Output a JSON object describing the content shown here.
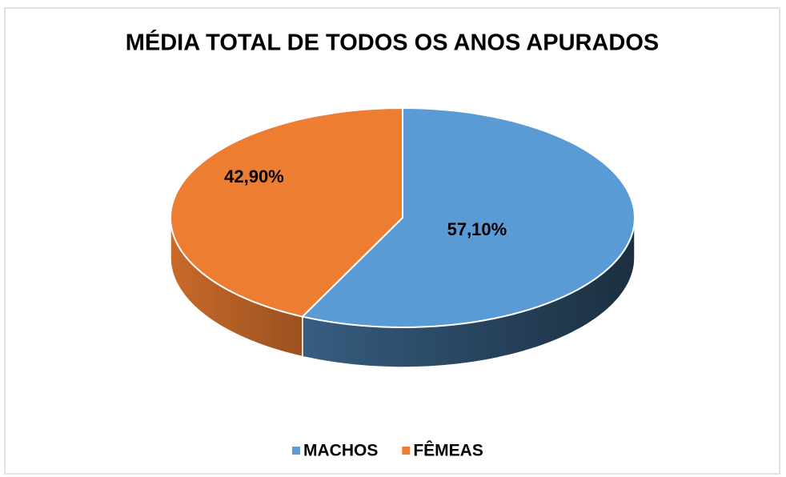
{
  "chart_data": {
    "type": "pie",
    "title": "MÉDIA TOTAL DE TODOS OS ANOS APURADOS",
    "categories": [
      "MACHOS",
      "FÊMEAS"
    ],
    "values": [
      57.1,
      42.9
    ],
    "value_labels": [
      "57,10%",
      "42,90%"
    ],
    "colors": [
      "#5b9bd5",
      "#ed7d31"
    ],
    "legend": "bottom"
  }
}
